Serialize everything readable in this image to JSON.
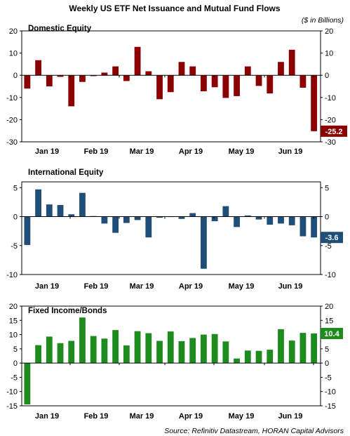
{
  "title": "Weekly US ETF Net Issuance and Mutual Fund Flows",
  "units_note": "($ in Billions)",
  "source": "Source: Refinitiv Datastream, HORAN Capital Advisors",
  "chart_data": [
    {
      "type": "bar",
      "title": "Domestic Equity",
      "color": "#8b0000",
      "ylim": [
        -30,
        20
      ],
      "yticks": [
        "20",
        "10",
        "0",
        "-10",
        "-20",
        "-30"
      ],
      "month_labels": [
        "Jan 19",
        "Feb 19",
        "Mar 19",
        "Apr 19",
        "May 19",
        "Jun 19"
      ],
      "values": [
        -6,
        6.8,
        -5,
        -0.7,
        -14,
        -3,
        -0.4,
        1.2,
        4,
        -2.6,
        12.8,
        1.8,
        -10.8,
        -7.6,
        6,
        4,
        -7.2,
        -5.4,
        -10.2,
        -9.4,
        4,
        -4.8,
        -8.2,
        6,
        11.5,
        -5.6,
        -25.2
      ],
      "last_value_label": "-25.2"
    },
    {
      "type": "bar",
      "title": "International Equity",
      "color": "#1f4e79",
      "ylim": [
        -10,
        6
      ],
      "yticks": [
        "5",
        "0",
        "-5",
        "-10"
      ],
      "month_labels": [
        "Jan 19",
        "Feb 19",
        "Mar 19",
        "Apr 19",
        "May 19",
        "Jun 19"
      ],
      "values": [
        -4.9,
        4.7,
        2.1,
        2,
        0.4,
        4.1,
        0.1,
        -1.2,
        -2.8,
        -1.1,
        -0.6,
        -3.6,
        -0.2,
        0,
        -0.4,
        0.6,
        -9,
        -0.8,
        1.8,
        -1.8,
        0.2,
        -0.5,
        -1.4,
        -1.2,
        -1.5,
        -3.4,
        -3.6
      ],
      "last_value_label": "-3.6"
    },
    {
      "type": "bar",
      "title": "Fixed Income/Bonds",
      "color": "#1e8b1e",
      "ylim": [
        -15,
        20
      ],
      "yticks": [
        "20",
        "15",
        "10",
        "5",
        "0",
        "-5",
        "-10",
        "-15"
      ],
      "month_labels": [
        "Jan 19",
        "Feb 19",
        "Mar 19",
        "Apr 19",
        "May 19",
        "Jun 19"
      ],
      "values": [
        -14.5,
        6.3,
        9.3,
        7,
        7.8,
        16,
        9.5,
        8.6,
        11.6,
        6.2,
        11.2,
        10.5,
        7.8,
        11.1,
        7.7,
        8.8,
        10,
        10.2,
        7.6,
        1.6,
        4.4,
        4.3,
        4.7,
        11.9,
        7.9,
        10.6,
        10.4
      ],
      "last_value_label": "10.4"
    }
  ]
}
